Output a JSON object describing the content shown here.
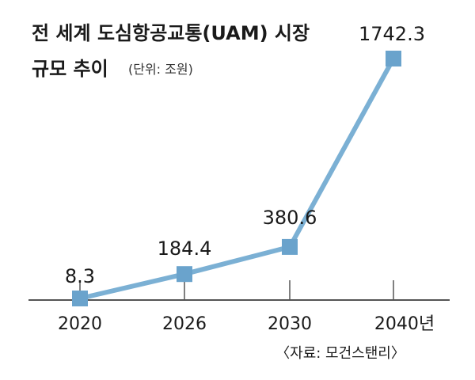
{
  "chart_data": {
    "type": "line",
    "title_line1": "전 세계 도심항공교통(UAM) 시장",
    "title_line2": "규모 추이",
    "unit": "(단위: 조원)",
    "categories": [
      "2020",
      "2026",
      "2030",
      "2040년"
    ],
    "values": [
      8.3,
      184.4,
      380.6,
      1742.3
    ],
    "value_labels": [
      "8.3",
      "184.4",
      "380.6",
      "1742.3"
    ],
    "source": "〈자료: 모건스탠리〉",
    "ylim": [
      0,
      1742.3
    ],
    "grid": false,
    "colors": {
      "line": "#7bb0d4",
      "marker": "#6aa3cc",
      "axis": "#555555",
      "text": "#1a1a1a"
    }
  }
}
